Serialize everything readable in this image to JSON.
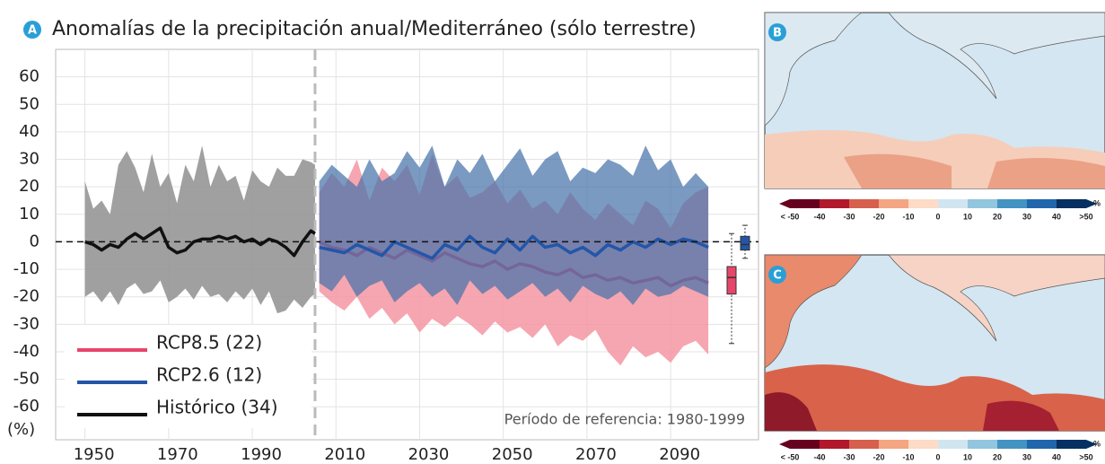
{
  "chart_data": {
    "type": "band-line",
    "title": "Anomalías de la precipitación anual/Mediterráneo (sólo terrestre)",
    "panel_label": "A",
    "y_label": "(%)",
    "annotation": "Período de referencia: 1980-1999",
    "xlim": [
      1943,
      2111
    ],
    "xticks": [
      1950,
      1970,
      1990,
      2010,
      2030,
      2050,
      2070,
      2090
    ],
    "ylim": [
      -72,
      70
    ],
    "yticks": [
      -60,
      -50,
      -40,
      -30,
      -20,
      -10,
      0,
      10,
      20,
      30,
      40,
      50,
      60
    ],
    "grid": true,
    "legend": "lower left",
    "series": [
      {
        "name": "RCP8.5 (22)",
        "color": "#e8456b",
        "band_color": "rgba(245,150,162,0.85)",
        "x": [
          2006,
          2009,
          2012,
          2015,
          2018,
          2021,
          2024,
          2027,
          2030,
          2033,
          2036,
          2039,
          2042,
          2045,
          2048,
          2051,
          2054,
          2057,
          2060,
          2063,
          2066,
          2069,
          2072,
          2075,
          2078,
          2081,
          2084,
          2087,
          2090,
          2093,
          2096,
          2099
        ],
        "values": [
          0,
          -2,
          -3,
          -5,
          -2,
          -4,
          -6,
          -3,
          -5,
          -7,
          -4,
          -6,
          -8,
          -9,
          -7,
          -10,
          -8,
          -9,
          -11,
          -12,
          -10,
          -13,
          -12,
          -14,
          -13,
          -15,
          -14,
          -13,
          -16,
          -14,
          -13,
          -15
        ],
        "upper": [
          18,
          25,
          20,
          30,
          15,
          27,
          22,
          28,
          17,
          32,
          20,
          24,
          16,
          18,
          22,
          14,
          19,
          12,
          15,
          10,
          18,
          12,
          8,
          14,
          10,
          6,
          15,
          12,
          5,
          14,
          18,
          20
        ],
        "lower": [
          -18,
          -22,
          -25,
          -20,
          -28,
          -24,
          -30,
          -26,
          -33,
          -28,
          -31,
          -27,
          -30,
          -34,
          -29,
          -33,
          -31,
          -35,
          -30,
          -38,
          -34,
          -36,
          -32,
          -40,
          -45,
          -38,
          -42,
          -40,
          -44,
          -38,
          -36,
          -41
        ],
        "box": {
          "whisker_low": -37,
          "q1": -19,
          "median": -13,
          "q3": -9,
          "whisker_high": 3
        }
      },
      {
        "name": "RCP2.6 (12)",
        "color": "#2356a8",
        "band_color": "rgba(70,115,170,0.72)",
        "x": [
          2006,
          2009,
          2012,
          2015,
          2018,
          2021,
          2024,
          2027,
          2030,
          2033,
          2036,
          2039,
          2042,
          2045,
          2048,
          2051,
          2054,
          2057,
          2060,
          2063,
          2066,
          2069,
          2072,
          2075,
          2078,
          2081,
          2084,
          2087,
          2090,
          2093,
          2096,
          2099
        ],
        "values": [
          -2,
          -3,
          -4,
          -1,
          -3,
          -5,
          0,
          -2,
          -4,
          -6,
          -1,
          -3,
          2,
          -2,
          -4,
          1,
          -3,
          2,
          -2,
          -1,
          -4,
          -2,
          -5,
          -1,
          -3,
          0,
          -2,
          1,
          -1,
          1,
          0,
          -2
        ],
        "upper": [
          22,
          28,
          24,
          20,
          30,
          22,
          25,
          33,
          27,
          35,
          20,
          30,
          25,
          32,
          22,
          28,
          34,
          24,
          30,
          33,
          22,
          27,
          25,
          30,
          28,
          24,
          35,
          26,
          30,
          20,
          25,
          20
        ],
        "lower": [
          -15,
          -18,
          -12,
          -20,
          -16,
          -14,
          -22,
          -18,
          -15,
          -20,
          -17,
          -23,
          -14,
          -19,
          -16,
          -21,
          -18,
          -15,
          -20,
          -17,
          -22,
          -16,
          -19,
          -21,
          -18,
          -23,
          -17,
          -20,
          -19,
          -16,
          -18,
          -20
        ],
        "box": {
          "whisker_low": -6,
          "q1": -3,
          "median": -1,
          "q3": 2,
          "whisker_high": 6
        }
      },
      {
        "name": "Histórico (34)",
        "color": "#111111",
        "band_color": "rgba(150,150,150,0.9)",
        "x": [
          1950,
          1952,
          1954,
          1956,
          1958,
          1960,
          1962,
          1964,
          1966,
          1968,
          1970,
          1972,
          1974,
          1976,
          1978,
          1980,
          1982,
          1984,
          1986,
          1988,
          1990,
          1992,
          1994,
          1996,
          1998,
          2000,
          2002,
          2004,
          2005
        ],
        "values": [
          0,
          -1,
          -3,
          -1,
          -2,
          1,
          3,
          1,
          3,
          5,
          -2,
          -4,
          -3,
          0,
          1,
          1,
          2,
          1,
          2,
          0,
          1,
          -1,
          1,
          0,
          -2,
          -5,
          0,
          4,
          3
        ],
        "upper": [
          22,
          12,
          15,
          10,
          28,
          33,
          27,
          18,
          32,
          20,
          25,
          14,
          28,
          22,
          35,
          20,
          28,
          22,
          24,
          15,
          26,
          22,
          20,
          27,
          24,
          24,
          30,
          29,
          28
        ],
        "lower": [
          -20,
          -18,
          -22,
          -18,
          -23,
          -17,
          -15,
          -19,
          -18,
          -14,
          -22,
          -20,
          -17,
          -21,
          -16,
          -20,
          -19,
          -22,
          -18,
          -21,
          -17,
          -23,
          -18,
          -26,
          -25,
          -21,
          -24,
          -20,
          -19
        ]
      }
    ]
  },
  "maps": [
    {
      "label": "B",
      "colorbar": {
        "colors": [
          "#67001f",
          "#b2182b",
          "#d6604d",
          "#f4a582",
          "#fddbc7",
          "#d1e5f0",
          "#92c5de",
          "#4393c3",
          "#2166ac",
          "#053061"
        ],
        "labels": [
          "< -50",
          "-40",
          "-30",
          "-20",
          "-10",
          "0",
          "10",
          "20",
          "30",
          "40",
          ">50"
        ],
        "unit": "%"
      }
    },
    {
      "label": "C",
      "colorbar": {
        "colors": [
          "#67001f",
          "#b2182b",
          "#d6604d",
          "#f4a582",
          "#fddbc7",
          "#d1e5f0",
          "#92c5de",
          "#4393c3",
          "#2166ac",
          "#053061"
        ],
        "labels": [
          "< -50",
          "-40",
          "-30",
          "-20",
          "-10",
          "0",
          "10",
          "20",
          "30",
          "40",
          ">50"
        ],
        "unit": "%"
      }
    }
  ]
}
